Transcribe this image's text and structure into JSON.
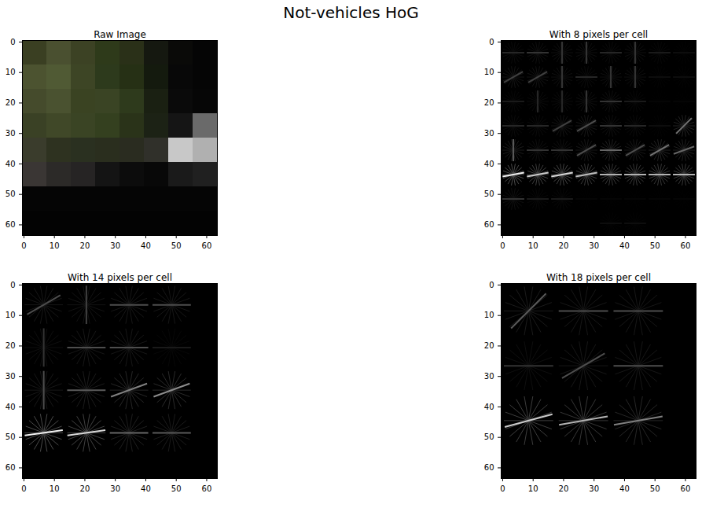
{
  "title": "Not-vehicles HoG",
  "chart_data": [
    {
      "type": "image",
      "title": "Raw Image",
      "xlim": [
        -0.5,
        63.5
      ],
      "ylim": [
        63.5,
        -0.5
      ],
      "xticks": [
        0,
        10,
        20,
        30,
        40,
        50,
        60
      ],
      "yticks": [
        0,
        10,
        20,
        30,
        40,
        50,
        60
      ],
      "cell_size": 8,
      "cells": [
        [
          "#3a3f22",
          "#4a5030",
          "#3c4224",
          "#2e3a1a",
          "#2a3018",
          "#151810",
          "#0a0a08",
          "#050505"
        ],
        [
          "#4c5330",
          "#505a34",
          "#3d4525",
          "#2d3a1c",
          "#263015",
          "#141a0e",
          "#080808",
          "#050505"
        ],
        [
          "#454b2c",
          "#4a5230",
          "#3a4322",
          "#3a4424",
          "#2e3a1c",
          "#1a2012",
          "#0a0a0a",
          "#060606"
        ],
        [
          "#3a4125",
          "#404828",
          "#3a4424",
          "#34401f",
          "#2a3319",
          "#1c2215",
          "#151515",
          "#6a6a6a"
        ],
        [
          "#3a3c2c",
          "#2e3220",
          "#2a3020",
          "#2a2e1e",
          "#2a2c20",
          "#30302a",
          "#c8c8c8",
          "#b0b0b0"
        ],
        [
          "#3a3634",
          "#2c2a28",
          "#262424",
          "#141414",
          "#0c0c0c",
          "#080808",
          "#1a1a1a",
          "#202020"
        ],
        [
          "#050505",
          "#050505",
          "#050505",
          "#050505",
          "#050505",
          "#050505",
          "#050505",
          "#050505"
        ],
        [
          "#030303",
          "#030303",
          "#030303",
          "#030303",
          "#030303",
          "#030303",
          "#030303",
          "#030303"
        ]
      ]
    },
    {
      "type": "hog",
      "title": "With 8 pixels per cell",
      "xlim": [
        -0.5,
        63.5
      ],
      "ylim": [
        63.5,
        -0.5
      ],
      "xticks": [
        0,
        10,
        20,
        30,
        40,
        50,
        60
      ],
      "yticks": [
        0,
        10,
        20,
        30,
        40,
        50,
        60
      ],
      "cell_size": 8,
      "strength": [
        [
          0.15,
          0.2,
          0.2,
          0.2,
          0.15,
          0.2,
          0.1,
          0.05
        ],
        [
          0.25,
          0.25,
          0.2,
          0.15,
          0.2,
          0.2,
          0.05,
          0.05
        ],
        [
          0.1,
          0.15,
          0.15,
          0.2,
          0.2,
          0.1,
          0.02,
          0.02
        ],
        [
          0.15,
          0.15,
          0.25,
          0.3,
          0.2,
          0.15,
          0.05,
          0.45
        ],
        [
          0.35,
          0.2,
          0.2,
          0.3,
          0.4,
          0.3,
          0.45,
          0.4
        ],
        [
          0.95,
          0.8,
          0.85,
          0.75,
          0.7,
          0.7,
          0.7,
          0.7
        ],
        [
          0.2,
          0.1,
          0.1,
          0.02,
          0.02,
          0.02,
          0.02,
          0.02
        ],
        [
          0,
          0,
          0,
          0,
          0.05,
          0.05,
          0,
          0
        ]
      ],
      "angle": [
        [
          0,
          0,
          90,
          90,
          0,
          90,
          0,
          0
        ],
        [
          30,
          30,
          90,
          0,
          90,
          90,
          0,
          0
        ],
        [
          0,
          90,
          90,
          90,
          0,
          0,
          0,
          0
        ],
        [
          0,
          0,
          30,
          30,
          0,
          0,
          0,
          45
        ],
        [
          90,
          0,
          0,
          30,
          0,
          30,
          30,
          20
        ],
        [
          10,
          10,
          10,
          10,
          0,
          0,
          0,
          0
        ],
        [
          0,
          0,
          0,
          0,
          0,
          0,
          0,
          0
        ],
        [
          0,
          0,
          0,
          0,
          0,
          0,
          0,
          0
        ]
      ]
    },
    {
      "type": "hog",
      "title": "With 14 pixels per cell",
      "xlim": [
        -0.5,
        63.5
      ],
      "ylim": [
        63.5,
        -0.5
      ],
      "xticks": [
        0,
        10,
        20,
        30,
        40,
        50,
        60
      ],
      "yticks": [
        0,
        10,
        20,
        30,
        40,
        50,
        60
      ],
      "cell_size": 14,
      "strength": [
        [
          0.3,
          0.25,
          0.3,
          0.3
        ],
        [
          0.2,
          0.3,
          0.3,
          0.1
        ],
        [
          0.3,
          0.35,
          0.5,
          0.55
        ],
        [
          0.95,
          0.85,
          0.4,
          0.35
        ]
      ],
      "angle": [
        [
          30,
          90,
          0,
          0
        ],
        [
          90,
          0,
          0,
          0
        ],
        [
          90,
          0,
          20,
          20
        ],
        [
          8,
          8,
          0,
          0
        ]
      ]
    },
    {
      "type": "hog",
      "title": "With 18 pixels per cell",
      "xlim": [
        -0.5,
        63.5
      ],
      "ylim": [
        63.5,
        -0.5
      ],
      "xticks": [
        0,
        10,
        20,
        30,
        40,
        50,
        60
      ],
      "yticks": [
        0,
        10,
        20,
        30,
        40,
        50,
        60
      ],
      "cell_size": 18,
      "strength": [
        [
          0.35,
          0.3,
          0.3
        ],
        [
          0.2,
          0.3,
          0.3
        ],
        [
          0.8,
          0.7,
          0.5
        ]
      ],
      "angle": [
        [
          45,
          0,
          0
        ],
        [
          0,
          30,
          0
        ],
        [
          15,
          10,
          10
        ]
      ]
    }
  ]
}
